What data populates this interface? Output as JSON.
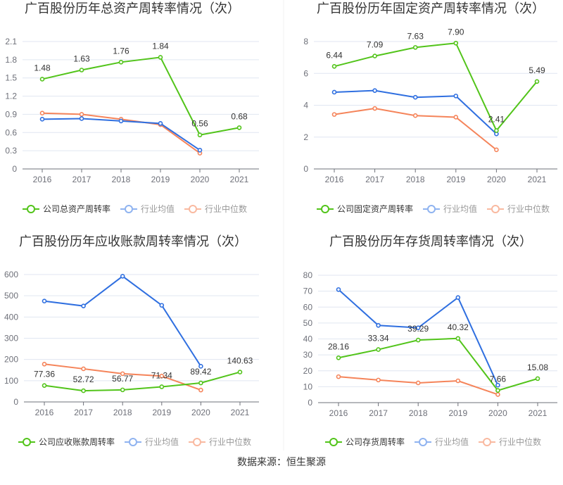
{
  "source": "数据来源：恒生聚源",
  "colors": {
    "company": "#52c41a",
    "average": "#2f6fe0",
    "median": "#f5845a",
    "grid": "#e0e6f1",
    "axis": "#6e7079",
    "tick_text": "#6e7079"
  },
  "chart_data": [
    {
      "type": "line",
      "title": "广百股份历年总资产周转率情况（次）",
      "categories": [
        "2016",
        "2017",
        "2018",
        "2019",
        "2020",
        "2021"
      ],
      "ylim": [
        0,
        2.1
      ],
      "yticks": [
        "0",
        "0.3",
        "0.6",
        "0.9",
        "1.2",
        "1.5",
        "1.8",
        "2.1"
      ],
      "grid": true,
      "legend_placement": "bottom",
      "series": [
        {
          "name": "公司总资产周转率",
          "values": [
            1.48,
            1.63,
            1.76,
            1.84,
            0.56,
            0.68
          ],
          "labels": [
            "1.48",
            "1.63",
            "1.76",
            "1.84",
            "0.56",
            "0.68"
          ]
        },
        {
          "name": "行业均值",
          "values": [
            0.82,
            0.83,
            0.79,
            0.75,
            0.31,
            null
          ]
        },
        {
          "name": "行业中位数",
          "values": [
            0.92,
            0.9,
            0.82,
            0.73,
            0.26,
            null
          ]
        }
      ]
    },
    {
      "type": "line",
      "title": "广百股份历年固定资产周转率情况（次）",
      "categories": [
        "2016",
        "2017",
        "2018",
        "2019",
        "2020",
        "2021"
      ],
      "ylim": [
        0,
        8
      ],
      "yticks": [
        "0",
        "2",
        "4",
        "6",
        "8"
      ],
      "grid": true,
      "legend_placement": "bottom",
      "series": [
        {
          "name": "公司固定资产周转率",
          "values": [
            6.44,
            7.09,
            7.63,
            7.9,
            2.41,
            5.49
          ],
          "labels": [
            "6.44",
            "7.09",
            "7.63",
            "7.90",
            "2.41",
            "5.49"
          ]
        },
        {
          "name": "行业均值",
          "values": [
            4.82,
            4.92,
            4.5,
            4.58,
            2.2,
            null
          ]
        },
        {
          "name": "行业中位数",
          "values": [
            3.42,
            3.8,
            3.35,
            3.25,
            1.2,
            null
          ]
        }
      ]
    },
    {
      "type": "line",
      "title": "广百股份历年应收账款周转率情况（次）",
      "categories": [
        "2016",
        "2017",
        "2018",
        "2019",
        "2020",
        "2021"
      ],
      "ylim": [
        0,
        600
      ],
      "yticks": [
        "0",
        "100",
        "200",
        "300",
        "400",
        "500",
        "600"
      ],
      "grid": true,
      "legend_placement": "bottom",
      "series": [
        {
          "name": "公司应收账款周转率",
          "values": [
            77.36,
            52.72,
            56.77,
            71.34,
            89.42,
            140.63
          ],
          "labels": [
            "77.36",
            "52.72",
            "56.77",
            "71.34",
            "89.42",
            "140.63"
          ]
        },
        {
          "name": "行业均值",
          "values": [
            475,
            452,
            592,
            455,
            168,
            null
          ]
        },
        {
          "name": "行业中位数",
          "values": [
            178,
            156,
            133,
            122,
            56,
            null
          ]
        }
      ]
    },
    {
      "type": "line",
      "title": "广百股份历年存货周转率情况（次）",
      "categories": [
        "2016",
        "2017",
        "2018",
        "2019",
        "2020",
        "2021"
      ],
      "ylim": [
        0,
        80
      ],
      "yticks": [
        "0",
        "10",
        "20",
        "30",
        "40",
        "50",
        "60",
        "70",
        "80"
      ],
      "grid": true,
      "legend_placement": "bottom",
      "series": [
        {
          "name": "公司存货周转率",
          "values": [
            28.16,
            33.34,
            39.29,
            40.32,
            7.66,
            15.08
          ],
          "labels": [
            "28.16",
            "33.34",
            "39.29",
            "40.32",
            "7.66",
            "15.08"
          ]
        },
        {
          "name": "行业均值",
          "values": [
            71,
            48.5,
            47,
            66,
            11,
            null
          ]
        },
        {
          "name": "行业中位数",
          "values": [
            16.3,
            14.2,
            12.4,
            13.7,
            5.1,
            null
          ]
        }
      ]
    }
  ]
}
